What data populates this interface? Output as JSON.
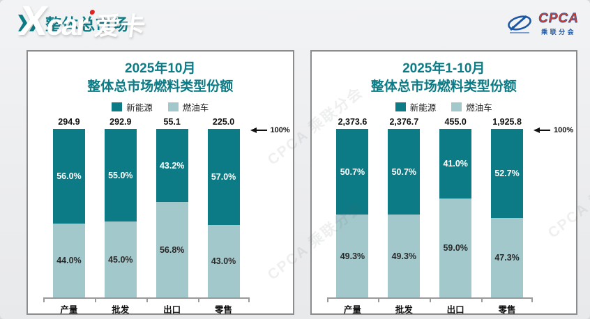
{
  "header": {
    "title": "整体总市场"
  },
  "xcar_watermark": {
    "x": "X",
    "latin": "car",
    "cn": "爱卡"
  },
  "cpca_logo": {
    "name": "CPCA",
    "subtitle": "乘联分会"
  },
  "background_watermark": "CPCA 乘联分会",
  "colors": {
    "nev": "#0d7b85",
    "ice": "#a3c8cc",
    "title_teal": "#0d7b85",
    "panel_border": "#8c8c8c",
    "page_bg": "#ededed"
  },
  "chart_data": [
    {
      "type": "bar",
      "stacked": true,
      "title": "2025年10月",
      "subtitle": "整体总市场燃料类型份额",
      "legend_position": "top",
      "grid": false,
      "ylim": [
        0,
        100
      ],
      "annotation": "100%",
      "categories": [
        "产量",
        "批发",
        "出口",
        "零售"
      ],
      "totals": [
        "294.9",
        "292.9",
        "55.1",
        "225.0"
      ],
      "series": [
        {
          "name": "新能源",
          "color": "#0d7b85",
          "values": [
            56.0,
            55.0,
            43.2,
            57.0
          ],
          "labels": [
            "56.0%",
            "55.0%",
            "43.2%",
            "57.0%"
          ]
        },
        {
          "name": "燃油车",
          "color": "#a3c8cc",
          "values": [
            44.0,
            45.0,
            56.8,
            43.0
          ],
          "labels": [
            "44.0%",
            "45.0%",
            "56.8%",
            "43.0%"
          ]
        }
      ]
    },
    {
      "type": "bar",
      "stacked": true,
      "title": "2025年1-10月",
      "subtitle": "整体总市场燃料类型份额",
      "legend_position": "top",
      "grid": false,
      "ylim": [
        0,
        100
      ],
      "annotation": "100%",
      "categories": [
        "产量",
        "批发",
        "出口",
        "零售"
      ],
      "totals": [
        "2,373.6",
        "2,376.7",
        "455.0",
        "1,925.8"
      ],
      "series": [
        {
          "name": "新能源",
          "color": "#0d7b85",
          "values": [
            50.7,
            50.7,
            41.0,
            52.7
          ],
          "labels": [
            "50.7%",
            "50.7%",
            "41.0%",
            "52.7%"
          ]
        },
        {
          "name": "燃油车",
          "color": "#a3c8cc",
          "values": [
            49.3,
            49.3,
            59.0,
            47.3
          ],
          "labels": [
            "49.3%",
            "49.3%",
            "59.0%",
            "47.3%"
          ]
        }
      ]
    }
  ]
}
